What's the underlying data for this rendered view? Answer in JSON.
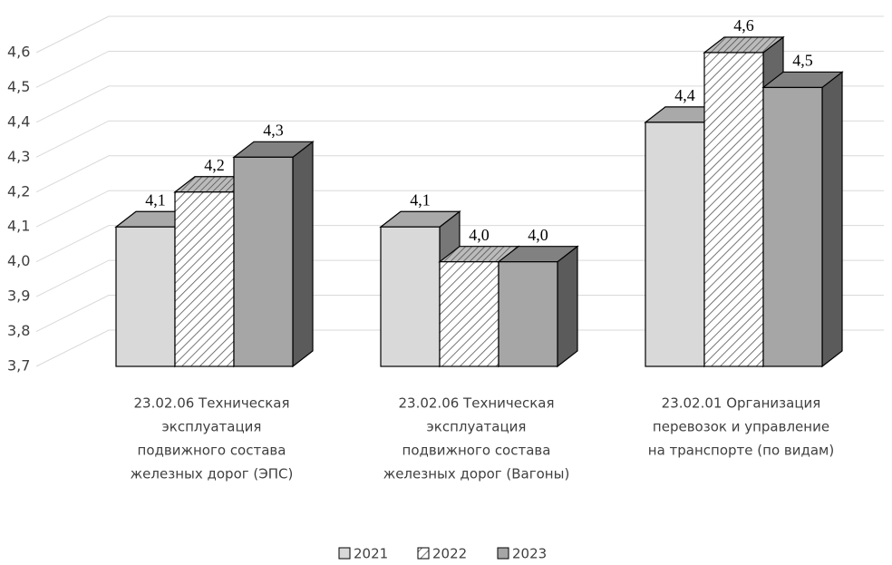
{
  "chart_data": {
    "type": "bar3d",
    "categories": [
      [
        "23.02.06 Техническая",
        "эксплуатация",
        "подвижного состава",
        "железных дорог (ЭПС)"
      ],
      [
        "23.02.06 Техническая",
        "эксплуатация",
        "подвижного состава",
        "железных дорог (Вагоны)"
      ],
      [
        "23.02.01 Организация",
        "перевозок и управление",
        "на транспорте (по видам)"
      ]
    ],
    "series": [
      {
        "name": "2021",
        "color": "#d9d9d9",
        "values": [
          4.1,
          4.1,
          4.4
        ],
        "value_labels": [
          "4,1",
          "4,1",
          "4,4"
        ]
      },
      {
        "name": "2022",
        "color": "#ffffff",
        "hatch": true,
        "values": [
          4.2,
          4.0,
          4.6
        ],
        "value_labels": [
          "4,2",
          "4,0",
          "4,6"
        ]
      },
      {
        "name": "2023",
        "color": "#a6a6a6",
        "values": [
          4.3,
          4.0,
          4.5
        ],
        "value_labels": [
          "4,3",
          "4,0",
          "4,5"
        ]
      }
    ],
    "ylim": [
      3.7,
      4.6
    ],
    "yticks": [
      {
        "value": 3.7,
        "label": "3,7"
      },
      {
        "value": 3.8,
        "label": "3,8"
      },
      {
        "value": 3.9,
        "label": "3,9"
      },
      {
        "value": 4.0,
        "label": "4,0"
      },
      {
        "value": 4.1,
        "label": "4,1"
      },
      {
        "value": 4.2,
        "label": "4,2"
      },
      {
        "value": 4.3,
        "label": "4,3"
      },
      {
        "value": 4.4,
        "label": "4,4"
      },
      {
        "value": 4.5,
        "label": "4,5"
      },
      {
        "value": 4.6,
        "label": "4,6"
      }
    ],
    "grid": true,
    "legend": "bottom"
  }
}
